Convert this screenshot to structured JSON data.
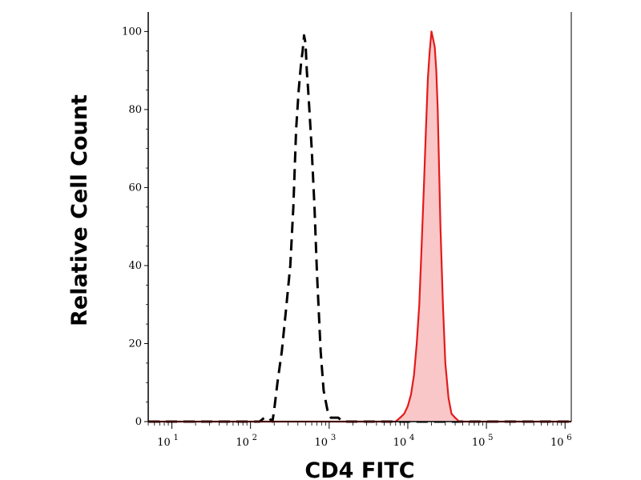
{
  "chart_data": {
    "type": "area",
    "xlabel": "CD4 FITC",
    "ylabel": "Relative Cell Count",
    "x_scale": "log",
    "xlim": [
      5,
      1200000
    ],
    "ylim": [
      0,
      105
    ],
    "x_ticks": [
      {
        "value": 10,
        "base": "10",
        "exp": "1"
      },
      {
        "value": 100,
        "base": "10",
        "exp": "2"
      },
      {
        "value": 1000,
        "base": "10",
        "exp": "3"
      },
      {
        "value": 10000,
        "base": "10",
        "exp": "4"
      },
      {
        "value": 100000,
        "base": "10",
        "exp": "5"
      },
      {
        "value": 1000000,
        "base": "10",
        "exp": "6"
      }
    ],
    "y_ticks": [
      "0",
      "20",
      "40",
      "60",
      "80",
      "100"
    ],
    "grid": false,
    "legend": "none",
    "series": [
      {
        "style": "dashed",
        "color": "#000000",
        "x": [
          5,
          130,
          150,
          170,
          190,
          200,
          220,
          250,
          280,
          320,
          350,
          380,
          410,
          440,
          460,
          480,
          500,
          520,
          540,
          560,
          600,
          650,
          700,
          780,
          850,
          950,
          1050,
          1150,
          1300,
          1500,
          2000,
          1200000
        ],
        "y": [
          0,
          0,
          1,
          1,
          0,
          3,
          10,
          18,
          28,
          40,
          55,
          75,
          85,
          92,
          95,
          99,
          97,
          90,
          85,
          80,
          70,
          55,
          38,
          18,
          8,
          3,
          1,
          1,
          1,
          0,
          0,
          0
        ]
      },
      {
        "style": "filled",
        "color": "#e41a1c",
        "fill": "#f9c7c7",
        "x": [
          5,
          7000,
          8000,
          9000,
          10000,
          11000,
          12000,
          13000,
          14000,
          15000,
          16000,
          17000,
          18000,
          19000,
          20000,
          21000,
          22000,
          23000,
          24000,
          25000,
          26000,
          28000,
          30000,
          33000,
          36000,
          40000,
          45000,
          1200000
        ],
        "y": [
          0,
          0,
          1,
          2,
          4,
          7,
          12,
          20,
          30,
          45,
          60,
          75,
          88,
          95,
          100,
          98,
          96,
          90,
          80,
          65,
          50,
          30,
          15,
          6,
          2,
          1,
          0,
          0
        ]
      }
    ]
  }
}
